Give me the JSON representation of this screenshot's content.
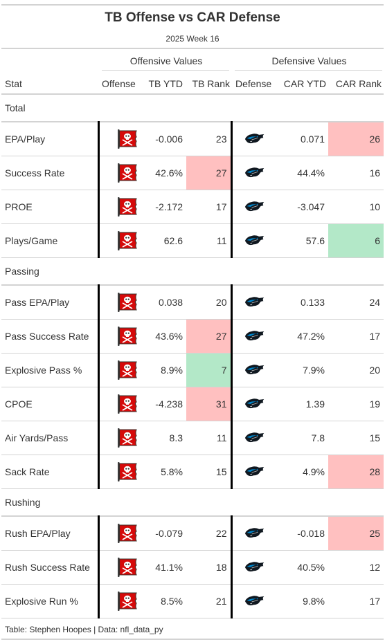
{
  "header": {
    "title": "TB Offense vs CAR Defense",
    "subtitle": "2025 Week 16"
  },
  "spanners": {
    "offense": "Offensive Values",
    "defense": "Defensive Values"
  },
  "columns": {
    "stat": "Stat",
    "offense": "Offense",
    "tb_ytd": "TB YTD",
    "tb_rank": "TB Rank",
    "defense": "Defense",
    "car_ytd": "CAR YTD",
    "car_rank": "CAR Rank"
  },
  "logos": {
    "offense": "tampa-bay-buccaneers-flag-icon",
    "defense": "carolina-panthers-icon"
  },
  "colors": {
    "bad": "#ffc0c0",
    "good": "#b3e8c8",
    "divider": "#000000",
    "rule": "#d3d3d3"
  },
  "groups": [
    {
      "name": "Total",
      "rows": [
        {
          "stat": "EPA/Play",
          "tb_ytd": "-0.006",
          "tb_rank": "23",
          "car_ytd": "0.071",
          "car_rank": "26",
          "tb_rank_flag": "",
          "car_rank_flag": "bad"
        },
        {
          "stat": "Success Rate",
          "tb_ytd": "42.6%",
          "tb_rank": "27",
          "car_ytd": "44.4%",
          "car_rank": "16",
          "tb_rank_flag": "bad",
          "car_rank_flag": ""
        },
        {
          "stat": "PROE",
          "tb_ytd": "-2.172",
          "tb_rank": "17",
          "car_ytd": "-3.047",
          "car_rank": "10",
          "tb_rank_flag": "",
          "car_rank_flag": ""
        },
        {
          "stat": "Plays/Game",
          "tb_ytd": "62.6",
          "tb_rank": "11",
          "car_ytd": "57.6",
          "car_rank": "6",
          "tb_rank_flag": "",
          "car_rank_flag": "good"
        }
      ]
    },
    {
      "name": "Passing",
      "rows": [
        {
          "stat": "Pass EPA/Play",
          "tb_ytd": "0.038",
          "tb_rank": "20",
          "car_ytd": "0.133",
          "car_rank": "24",
          "tb_rank_flag": "",
          "car_rank_flag": ""
        },
        {
          "stat": "Pass Success Rate",
          "tb_ytd": "43.6%",
          "tb_rank": "27",
          "car_ytd": "47.2%",
          "car_rank": "17",
          "tb_rank_flag": "bad",
          "car_rank_flag": ""
        },
        {
          "stat": "Explosive Pass %",
          "tb_ytd": "8.9%",
          "tb_rank": "7",
          "car_ytd": "7.9%",
          "car_rank": "20",
          "tb_rank_flag": "good",
          "car_rank_flag": ""
        },
        {
          "stat": "CPOE",
          "tb_ytd": "-4.238",
          "tb_rank": "31",
          "car_ytd": "1.39",
          "car_rank": "19",
          "tb_rank_flag": "bad",
          "car_rank_flag": ""
        },
        {
          "stat": "Air Yards/Pass",
          "tb_ytd": "8.3",
          "tb_rank": "11",
          "car_ytd": "7.8",
          "car_rank": "15",
          "tb_rank_flag": "",
          "car_rank_flag": ""
        },
        {
          "stat": "Sack Rate",
          "tb_ytd": "5.8%",
          "tb_rank": "15",
          "car_ytd": "4.9%",
          "car_rank": "28",
          "tb_rank_flag": "",
          "car_rank_flag": "bad"
        }
      ]
    },
    {
      "name": "Rushing",
      "rows": [
        {
          "stat": "Rush EPA/Play",
          "tb_ytd": "-0.079",
          "tb_rank": "22",
          "car_ytd": "-0.018",
          "car_rank": "25",
          "tb_rank_flag": "",
          "car_rank_flag": "bad"
        },
        {
          "stat": "Rush Success Rate",
          "tb_ytd": "41.1%",
          "tb_rank": "18",
          "car_ytd": "40.5%",
          "car_rank": "12",
          "tb_rank_flag": "",
          "car_rank_flag": ""
        },
        {
          "stat": "Explosive Run %",
          "tb_ytd": "8.5%",
          "tb_rank": "21",
          "car_ytd": "9.8%",
          "car_rank": "17",
          "tb_rank_flag": "",
          "car_rank_flag": ""
        }
      ]
    }
  ],
  "footer": "Table: Stephen Hoopes | Data: nfl_data_py"
}
